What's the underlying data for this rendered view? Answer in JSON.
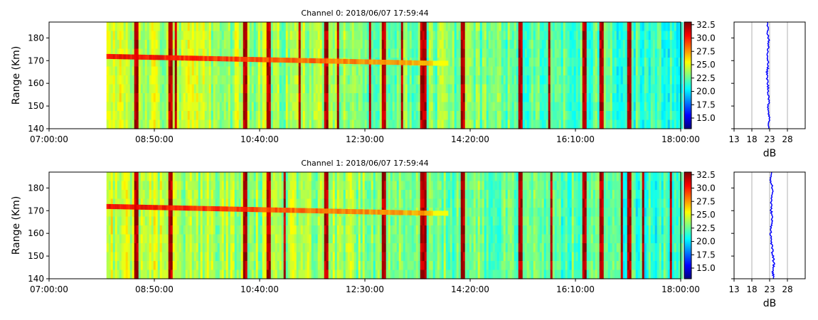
{
  "chart_data": [
    {
      "type": "heatmap",
      "title": "Channel 0: 2018/06/07 17:59:44",
      "ylabel": "Range (Km)",
      "xlabel": "",
      "ylim": [
        140,
        187
      ],
      "x_range": [
        "07:00:00",
        "18:00:00"
      ],
      "data_start": "08:00:00",
      "xticks": [
        "07:00:00",
        "08:50:00",
        "10:40:00",
        "12:30:00",
        "14:20:00",
        "16:10:00",
        "18:00:00"
      ],
      "yticks": [
        140,
        150,
        160,
        170,
        180
      ],
      "colorbar": {
        "range": [
          13,
          33
        ],
        "ticks": [
          "15.0",
          "17.5",
          "20.0",
          "22.5",
          "25.0",
          "27.5",
          "30.0",
          "32.5"
        ],
        "colormap": "jet"
      },
      "feature": {
        "description_values": {
          "start_time": "08:00:00",
          "start_km": 172,
          "end_time": "13:40:00",
          "end_km": 169
        }
      },
      "profile": {
        "type": "line",
        "xlabel": "dB",
        "xticks": [
          "13",
          "18",
          "23",
          "28"
        ],
        "xlim": [
          13,
          33
        ],
        "color": "#0000ff",
        "points": [
          [
            22.6,
            187
          ],
          [
            22.4,
            183
          ],
          [
            22.8,
            179
          ],
          [
            22.5,
            175
          ],
          [
            22.3,
            171
          ],
          [
            22.7,
            168
          ],
          [
            22.2,
            165
          ],
          [
            22.4,
            161
          ],
          [
            22.6,
            157
          ],
          [
            22.8,
            153
          ],
          [
            22.6,
            149
          ],
          [
            22.9,
            145
          ],
          [
            22.7,
            140
          ]
        ]
      }
    },
    {
      "type": "heatmap",
      "title": "Channel 1: 2018/06/07 17:59:44",
      "ylabel": "Range (Km)",
      "xlabel": "",
      "ylim": [
        140,
        187
      ],
      "x_range": [
        "07:00:00",
        "18:00:00"
      ],
      "data_start": "08:00:00",
      "xticks": [
        "07:00:00",
        "08:50:00",
        "10:40:00",
        "12:30:00",
        "14:20:00",
        "16:10:00",
        "18:00:00"
      ],
      "yticks": [
        140,
        150,
        160,
        170,
        180
      ],
      "colorbar": {
        "range": [
          13,
          33
        ],
        "ticks": [
          "15.0",
          "17.5",
          "20.0",
          "22.5",
          "25.0",
          "27.5",
          "30.0",
          "32.5"
        ],
        "colormap": "jet"
      },
      "feature": {
        "description_values": {
          "start_time": "08:00:00",
          "start_km": 172,
          "end_time": "13:40:00",
          "end_km": 169
        }
      },
      "profile": {
        "type": "line",
        "xlabel": "dB",
        "xticks": [
          "13",
          "18",
          "23",
          "28"
        ],
        "xlim": [
          13,
          33
        ],
        "color": "#0000ff",
        "points": [
          [
            23.6,
            187
          ],
          [
            23.3,
            183
          ],
          [
            23.9,
            179
          ],
          [
            23.5,
            175
          ],
          [
            23.4,
            171
          ],
          [
            23.7,
            167
          ],
          [
            23.5,
            163
          ],
          [
            23.3,
            159
          ],
          [
            23.6,
            155
          ],
          [
            23.8,
            151
          ],
          [
            24.2,
            147
          ],
          [
            23.9,
            143
          ],
          [
            24.1,
            140
          ]
        ]
      }
    }
  ]
}
